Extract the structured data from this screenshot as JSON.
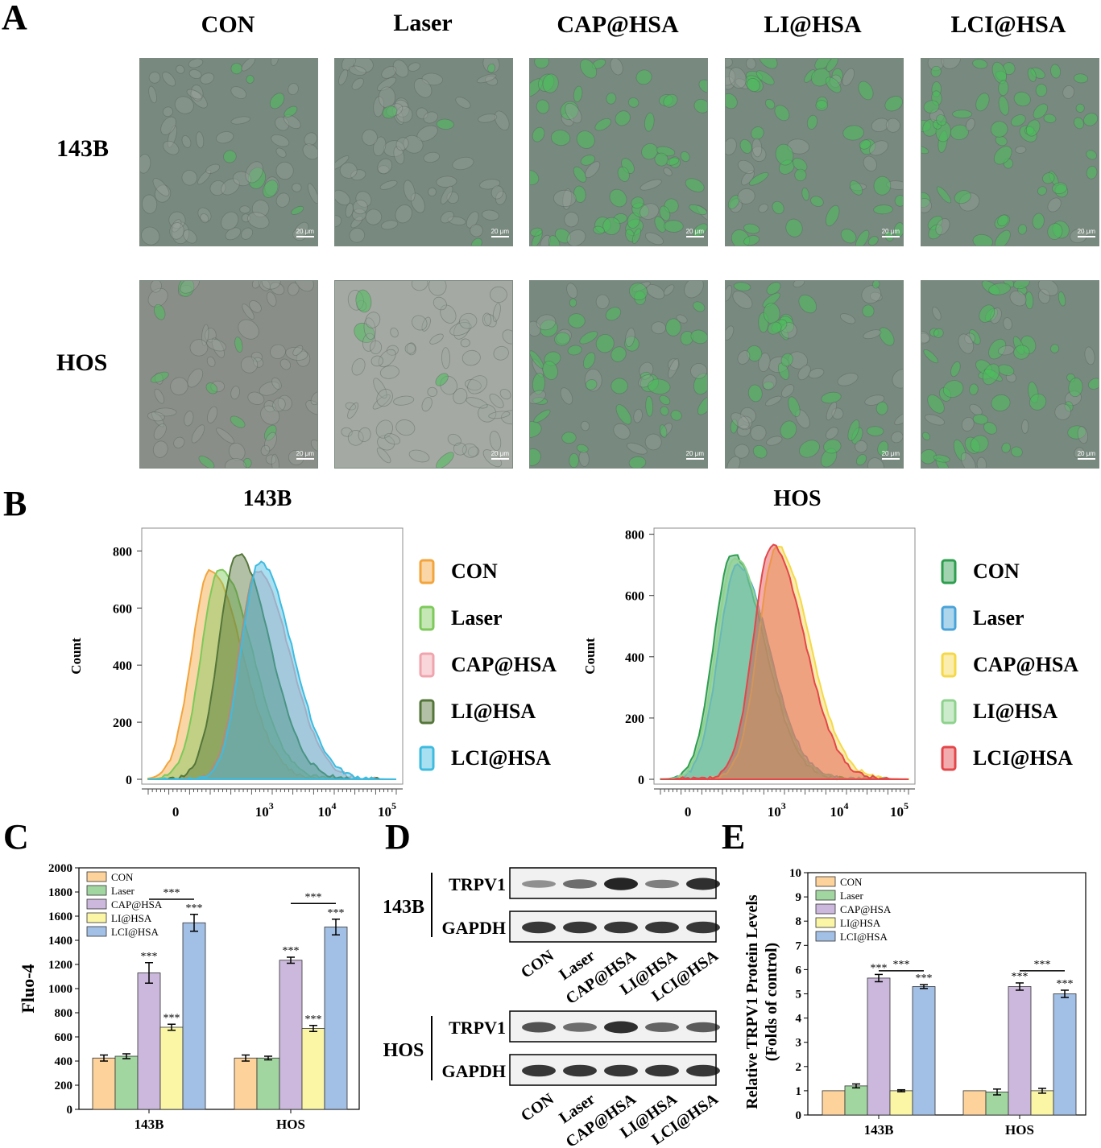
{
  "panel_labels": {
    "a": "A",
    "b": "B",
    "c": "C",
    "d": "D",
    "e": "E"
  },
  "panel_a": {
    "columns": [
      "CON",
      "Laser",
      "CAP@HSA",
      "LI@HSA",
      "LCI@HSA"
    ],
    "rows": [
      {
        "label": "143B",
        "green_levels": [
          0.05,
          0.1,
          0.8,
          0.75,
          0.75
        ]
      },
      {
        "label": "HOS",
        "green_levels": [
          0.1,
          0.05,
          0.55,
          0.45,
          0.6
        ]
      }
    ],
    "scale_bar": "20 μm",
    "colors": {
      "field": "#78897f",
      "cell_green": "#4cbf5c"
    }
  },
  "chart_data": [
    {
      "id": "B-143B",
      "type": "area",
      "title": "143B",
      "ylabel": "Count",
      "xlabel": "",
      "yticks": [
        "0",
        "200",
        "400",
        "600",
        "800"
      ],
      "ylim": [
        0,
        880
      ],
      "xticks": [
        {
          "base": "0",
          "exp": ""
        },
        {
          "base": "10",
          "exp": "3"
        },
        {
          "base": "10",
          "exp": "4"
        },
        {
          "base": "10",
          "exp": "5"
        }
      ],
      "legend": "right",
      "series": [
        {
          "name": "CON",
          "color": "#f3a43c",
          "peak_count": 730,
          "peak_x": 0.25
        },
        {
          "name": "Laser",
          "color": "#7dc95a",
          "peak_count": 740,
          "peak_x": 0.29
        },
        {
          "name": "CAP@HSA",
          "color": "#f0a4ad",
          "peak_count": 730,
          "peak_x": 0.44
        },
        {
          "name": "LI@HSA",
          "color": "#55763a",
          "peak_count": 790,
          "peak_x": 0.36
        },
        {
          "name": "LCI@HSA",
          "color": "#3fbbe0",
          "peak_count": 760,
          "peak_x": 0.45
        }
      ]
    },
    {
      "id": "B-HOS",
      "type": "area",
      "title": "HOS",
      "ylabel": "Count",
      "xlabel": "",
      "yticks": [
        "0",
        "200",
        "400",
        "600",
        "800"
      ],
      "ylim": [
        0,
        820
      ],
      "xticks": [
        {
          "base": "0",
          "exp": ""
        },
        {
          "base": "10",
          "exp": "3"
        },
        {
          "base": "10",
          "exp": "4"
        },
        {
          "base": "10",
          "exp": "5"
        }
      ],
      "legend": "right",
      "series": [
        {
          "name": "CON",
          "color": "#2e9e4f",
          "peak_count": 735,
          "peak_x": 0.29
        },
        {
          "name": "Laser",
          "color": "#4aa3d8",
          "peak_count": 700,
          "peak_x": 0.31
        },
        {
          "name": "CAP@HSA",
          "color": "#f5d84a",
          "peak_count": 760,
          "peak_x": 0.47
        },
        {
          "name": "LI@HSA",
          "color": "#8ed28d",
          "peak_count": 725,
          "peak_x": 0.3
        },
        {
          "name": "LCI@HSA",
          "color": "#e3474a",
          "peak_count": 765,
          "peak_x": 0.45
        }
      ]
    },
    {
      "id": "C",
      "type": "bar",
      "title": "",
      "ylabel": "Fluo-4",
      "xlabel": "",
      "ylim": [
        0,
        2000
      ],
      "yticks": [
        "0",
        "200",
        "400",
        "600",
        "800",
        "1000",
        "1200",
        "1400",
        "1600",
        "1800",
        "2000"
      ],
      "categories": [
        "143B",
        "HOS"
      ],
      "legend": "top-left",
      "series": [
        {
          "name": "CON",
          "color": "#fdd39b",
          "values": [
            425,
            425
          ],
          "errors": [
            25,
            25
          ],
          "marks": [
            "",
            ""
          ]
        },
        {
          "name": "Laser",
          "color": "#a2d6a1",
          "values": [
            440,
            425
          ],
          "errors": [
            20,
            15
          ],
          "marks": [
            "",
            ""
          ]
        },
        {
          "name": "CAP@HSA",
          "color": "#cbb8dc",
          "values": [
            1130,
            1235
          ],
          "errors": [
            85,
            25
          ],
          "marks": [
            "***",
            "***"
          ]
        },
        {
          "name": "LI@HSA",
          "color": "#fbf6a6",
          "values": [
            680,
            670
          ],
          "errors": [
            25,
            25
          ],
          "marks": [
            "***",
            "***"
          ]
        },
        {
          "name": "LCI@HSA",
          "color": "#a2bfe6",
          "values": [
            1545,
            1510
          ],
          "errors": [
            70,
            65
          ],
          "marks": [
            "***",
            "***"
          ]
        }
      ],
      "brackets": [
        {
          "mark": "***",
          "category": 0,
          "y": 1740
        },
        {
          "mark": "***",
          "category": 1,
          "y": 1705
        }
      ]
    },
    {
      "id": "E",
      "type": "bar",
      "title": "",
      "ylabel": "Relative TRPV1 Protein Levels (Folds of control)",
      "ylabel_lines": [
        "Relative TRPV1 Protein Levels",
        "(Folds of control)"
      ],
      "xlabel": "",
      "ylim": [
        0,
        10
      ],
      "yticks": [
        "0",
        "1",
        "2",
        "3",
        "4",
        "5",
        "6",
        "7",
        "8",
        "9",
        "10"
      ],
      "categories": [
        "143B",
        "HOS"
      ],
      "legend": "top-left",
      "series": [
        {
          "name": "CON",
          "color": "#fdd39b",
          "values": [
            1.0,
            1.0
          ],
          "errors": [
            0,
            0
          ],
          "marks": [
            "",
            ""
          ]
        },
        {
          "name": "Laser",
          "color": "#a2d6a1",
          "values": [
            1.2,
            0.95
          ],
          "errors": [
            0.08,
            0.12
          ],
          "marks": [
            "",
            ""
          ]
        },
        {
          "name": "CAP@HSA",
          "color": "#cbb8dc",
          "values": [
            5.65,
            5.3
          ],
          "errors": [
            0.15,
            0.15
          ],
          "marks": [
            "***",
            "***"
          ]
        },
        {
          "name": "LI@HSA",
          "color": "#fbf6a6",
          "values": [
            1.0,
            1.0
          ],
          "errors": [
            0.04,
            0.1
          ],
          "marks": [
            "",
            ""
          ]
        },
        {
          "name": "LCI@HSA",
          "color": "#a2bfe6",
          "values": [
            5.3,
            5.0
          ],
          "errors": [
            0.08,
            0.15
          ],
          "marks": [
            "***",
            "***"
          ]
        }
      ],
      "brackets": [
        {
          "mark": "***",
          "category": 0,
          "y": 5.95
        },
        {
          "mark": "***",
          "category": 1,
          "y": 5.95
        }
      ]
    }
  ],
  "panel_d": {
    "lanes": [
      "CON",
      "Laser",
      "CAP@HSA",
      "LI@HSA",
      "LCI@HSA"
    ],
    "blots": [
      {
        "cell_line": "143B",
        "bands": [
          {
            "protein": "TRPV1",
            "intensities": [
              0.35,
              0.55,
              0.95,
              0.45,
              0.9
            ]
          },
          {
            "protein": "GAPDH",
            "intensities": [
              0.85,
              0.85,
              0.85,
              0.85,
              0.85
            ]
          }
        ]
      },
      {
        "cell_line": "HOS",
        "bands": [
          {
            "protein": "TRPV1",
            "intensities": [
              0.7,
              0.55,
              0.9,
              0.6,
              0.65
            ]
          },
          {
            "protein": "GAPDH",
            "intensities": [
              0.85,
              0.85,
              0.85,
              0.85,
              0.85
            ]
          }
        ]
      }
    ]
  }
}
